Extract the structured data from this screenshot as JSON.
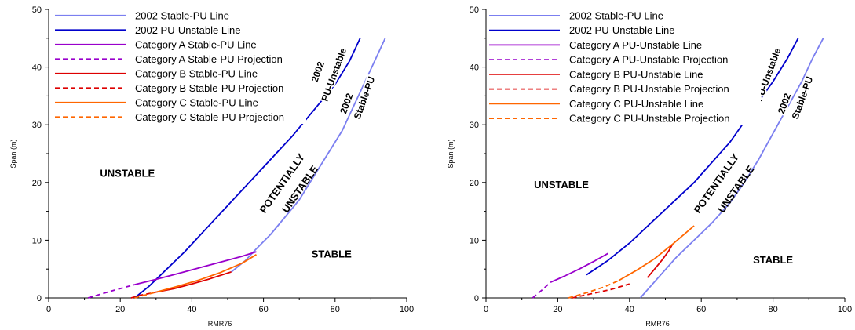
{
  "chart_data": [
    {
      "type": "line",
      "xlabel": "RMR76",
      "ylabel": "Span (m)",
      "xlim": [
        0,
        100
      ],
      "ylim": [
        0,
        50
      ],
      "xticks": [
        0,
        20,
        40,
        60,
        80,
        100
      ],
      "yticks": [
        0,
        10,
        20,
        30,
        40,
        50
      ],
      "region_labels": [
        {
          "text": "UNSTABLE",
          "at": [
            22,
            21
          ],
          "rotate": 0
        },
        {
          "text": "STABLE",
          "at": [
            79,
            7
          ],
          "rotate": 0
        },
        {
          "text": "POTENTIALLY",
          "at": [
            66,
            19.5
          ],
          "rotate": -55
        },
        {
          "text": "UNSTABLE",
          "at": [
            71,
            18.5
          ],
          "rotate": -55
        }
      ],
      "curve_labels": [
        {
          "text": "2002",
          "at": [
            76,
            39
          ],
          "rotate": -70
        },
        {
          "text": "PU-Unstable",
          "at": [
            80.5,
            38.5
          ],
          "rotate": -70
        },
        {
          "text": "2002",
          "at": [
            84,
            33.5
          ],
          "rotate": -70
        },
        {
          "text": "Stable-PU",
          "at": [
            89,
            34.5
          ],
          "rotate": -70
        }
      ],
      "series": [
        {
          "name": "2002 Stable-PU Line",
          "color": "#7b7ff0",
          "dash": false,
          "x": [
            51,
            55,
            58,
            62,
            66,
            70,
            74,
            78,
            82,
            85,
            88,
            91,
            94
          ],
          "y": [
            4.5,
            6.5,
            8.5,
            11,
            14,
            17,
            21,
            25,
            29,
            33,
            37,
            41,
            45
          ]
        },
        {
          "name": "2002 PU-Unstable Line",
          "color": "#0000cc",
          "dash": false,
          "x": [
            24,
            28,
            33,
            38,
            44,
            50,
            56,
            62,
            68,
            72,
            76,
            80,
            84,
            87
          ],
          "y": [
            0,
            2,
            5,
            8,
            12,
            16,
            20,
            24,
            28,
            31,
            34,
            37,
            41,
            45
          ]
        },
        {
          "name": "Category A Stable-PU Line",
          "color": "#9900cc",
          "dash": false,
          "x": [
            24,
            30,
            36,
            42,
            48,
            54,
            58
          ],
          "y": [
            2.3,
            3.2,
            4.2,
            5.2,
            6.2,
            7.2,
            8
          ]
        },
        {
          "name": "Category A Stable-PU Projection",
          "color": "#9900cc",
          "dash": true,
          "x": [
            11,
            17,
            24
          ],
          "y": [
            0,
            1.1,
            2.3
          ]
        },
        {
          "name": "Category B Stable-PU Line",
          "color": "#dd0000",
          "dash": false,
          "x": [
            30,
            35,
            40,
            45,
            51
          ],
          "y": [
            1,
            1.6,
            2.4,
            3.3,
            4.5
          ]
        },
        {
          "name": "Category B Stable-PU Projection",
          "color": "#dd0000",
          "dash": true,
          "x": [
            23,
            26,
            30
          ],
          "y": [
            0,
            0.5,
            1
          ]
        },
        {
          "name": "Category C Stable-PU Line",
          "color": "#ff6600",
          "dash": false,
          "x": [
            30,
            36,
            42,
            48,
            54,
            58
          ],
          "y": [
            1,
            2,
            3.1,
            4.4,
            6,
            7.5
          ]
        },
        {
          "name": "Category C Stable-PU Projection",
          "color": "#ff6600",
          "dash": true,
          "x": [
            24,
            27,
            30
          ],
          "y": [
            0,
            0.5,
            1
          ]
        }
      ]
    },
    {
      "type": "line",
      "xlabel": "RMR76",
      "ylabel": "Span (m)",
      "xlim": [
        0,
        100
      ],
      "ylim": [
        0,
        50
      ],
      "xticks": [
        0,
        20,
        40,
        60,
        80,
        100
      ],
      "yticks": [
        0,
        10,
        20,
        30,
        40,
        50
      ],
      "region_labels": [
        {
          "text": "UNSTABLE",
          "at": [
            21,
            19
          ],
          "rotate": 0
        },
        {
          "text": "STABLE",
          "at": [
            80,
            6
          ],
          "rotate": 0
        },
        {
          "text": "POTENTIALLY",
          "at": [
            65,
            19.5
          ],
          "rotate": -55
        },
        {
          "text": "UNSTABLE",
          "at": [
            70.5,
            18.5
          ],
          "rotate": -55
        }
      ],
      "curve_labels": [
        {
          "text": "2002",
          "at": [
            75,
            39
          ],
          "rotate": -70
        },
        {
          "text": "PU-Unstable",
          "at": [
            79.5,
            38.5
          ],
          "rotate": -70
        },
        {
          "text": "2002",
          "at": [
            84,
            33.5
          ],
          "rotate": -70
        },
        {
          "text": "Stable-PU",
          "at": [
            89,
            34.5
          ],
          "rotate": -70
        }
      ],
      "series": [
        {
          "name": "2002 Stable-PU Line",
          "color": "#7b7ff0",
          "dash": false,
          "x": [
            43,
            48,
            53,
            58,
            63,
            68,
            72,
            76,
            80,
            84,
            88,
            91,
            94
          ],
          "y": [
            0,
            3.5,
            7,
            10,
            13,
            16.5,
            20,
            24,
            28.5,
            33,
            37.5,
            41.5,
            45
          ]
        },
        {
          "name": "2002 PU-Unstable Line",
          "color": "#0000cc",
          "dash": false,
          "x": [
            28,
            34,
            40,
            46,
            52,
            58,
            63,
            68,
            72,
            76,
            80,
            84,
            87
          ],
          "y": [
            4,
            6.5,
            9.5,
            13,
            16.5,
            20,
            23.5,
            27,
            30.5,
            34,
            37.5,
            41.5,
            45
          ]
        },
        {
          "name": "Category A PU-Unstable Line",
          "color": "#9900cc",
          "dash": false,
          "x": [
            18,
            22,
            26,
            30,
            34
          ],
          "y": [
            2.7,
            3.8,
            5,
            6.3,
            7.7
          ]
        },
        {
          "name": "Category A PU-Unstable Projection",
          "color": "#9900cc",
          "dash": true,
          "x": [
            13,
            15.5,
            18
          ],
          "y": [
            0,
            1.3,
            2.7
          ]
        },
        {
          "name": "Category B PU-Unstable Line",
          "color": "#dd0000",
          "dash": false,
          "x": [
            45,
            47,
            49,
            51,
            52
          ],
          "y": [
            3.5,
            5,
            6.5,
            8.2,
            9.3
          ]
        },
        {
          "name": "Category B PU-Unstable Projection",
          "color": "#dd0000",
          "dash": true,
          "x": [
            24,
            30,
            35,
            40
          ],
          "y": [
            0,
            0.8,
            1.5,
            2.4
          ]
        },
        {
          "name": "Category C PU-Unstable Line",
          "color": "#ff6600",
          "dash": false,
          "x": [
            37,
            42,
            47,
            52,
            58
          ],
          "y": [
            3,
            4.8,
            6.8,
            9.3,
            12.5
          ]
        },
        {
          "name": "Category C PU-Unstable Projection",
          "color": "#ff6600",
          "dash": true,
          "x": [
            23,
            28,
            33,
            37
          ],
          "y": [
            0,
            0.9,
            1.9,
            3
          ]
        }
      ]
    }
  ]
}
